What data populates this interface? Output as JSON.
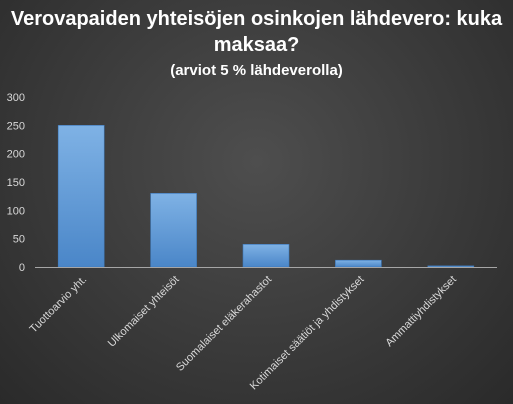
{
  "chart_data": {
    "type": "bar",
    "title": "Verovapaiden yhteisöjen osinkojen lähdevero: kuka maksaa?",
    "subtitle": "(arviot 5 % lähdeverolla)",
    "xlabel": "",
    "ylabel": "",
    "categories": [
      "Tuottoarvio yht.",
      "Ulkomaiset yhteisöt",
      "Suomalaiset eläkerahastot",
      "Kotimaiset säätiöt ja yhdistykset",
      "Ammattiyhdistykset"
    ],
    "values": [
      250,
      130,
      40,
      12,
      2
    ],
    "ylim": [
      0,
      300
    ],
    "yticks": [
      "0",
      "50",
      "100",
      "150",
      "200",
      "250",
      "300"
    ],
    "grid": false,
    "legend": "none",
    "colors": {
      "bar_top": "#7fb2e5",
      "bar_bottom": "#4a86c8",
      "axis": "#a6a6a6",
      "text": "#ffffff",
      "tick_text": "#d9d9d9"
    }
  }
}
